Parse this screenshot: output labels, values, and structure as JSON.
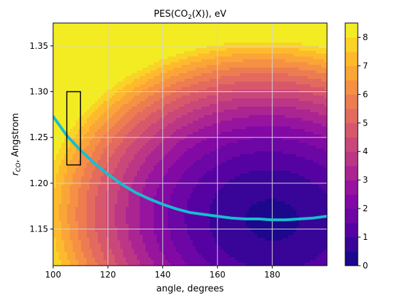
{
  "chart_data": {
    "type": "heatmap",
    "title": {
      "prefix": "PES(CO",
      "sub": "2",
      "suffix": "(X)), eV"
    },
    "xlabel": "angle, degrees",
    "ylabel": {
      "main": "r",
      "sub": "CO",
      "suffix": ", Angstrom"
    },
    "xlim": [
      100,
      200
    ],
    "ylim": [
      1.11,
      1.375
    ],
    "xticks": [
      100,
      120,
      140,
      160,
      180
    ],
    "yticks": [
      1.15,
      1.2,
      1.25,
      1.3,
      1.35
    ],
    "ytick_labels": [
      "1.15",
      "1.20",
      "1.25",
      "1.30",
      "1.35"
    ],
    "grid": true,
    "colormap": "plasma",
    "colorbar": {
      "vmin": 0,
      "vmax": 8.5,
      "ticks": [
        0,
        1,
        2,
        3,
        4,
        5,
        6,
        7,
        8
      ],
      "levels": [
        0,
        0.5,
        1,
        1.5,
        2,
        2.5,
        3,
        3.5,
        4,
        4.5,
        5,
        5.5,
        6,
        6.5,
        7,
        7.5,
        8,
        8.5
      ]
    },
    "surface_model": {
      "minimum": {
        "angle": 180,
        "r": 1.16
      },
      "energy_at_minimum": 0.4
    },
    "series": [
      {
        "type": "line",
        "color": "#17becf",
        "x": [
          100,
          105,
          110,
          115,
          120,
          125,
          130,
          135,
          140,
          145,
          150,
          155,
          160,
          165,
          170,
          175,
          180,
          185,
          190,
          195,
          200
        ],
        "y": [
          1.273,
          1.252,
          1.236,
          1.222,
          1.21,
          1.199,
          1.19,
          1.183,
          1.177,
          1.172,
          1.168,
          1.166,
          1.164,
          1.162,
          1.161,
          1.161,
          1.16,
          1.16,
          1.161,
          1.162,
          1.164
        ]
      }
    ],
    "annotations": [
      {
        "type": "rectangle",
        "x0": 105,
        "x1": 110,
        "y0": 1.22,
        "y1": 1.3,
        "edge": "#000000"
      }
    ]
  }
}
